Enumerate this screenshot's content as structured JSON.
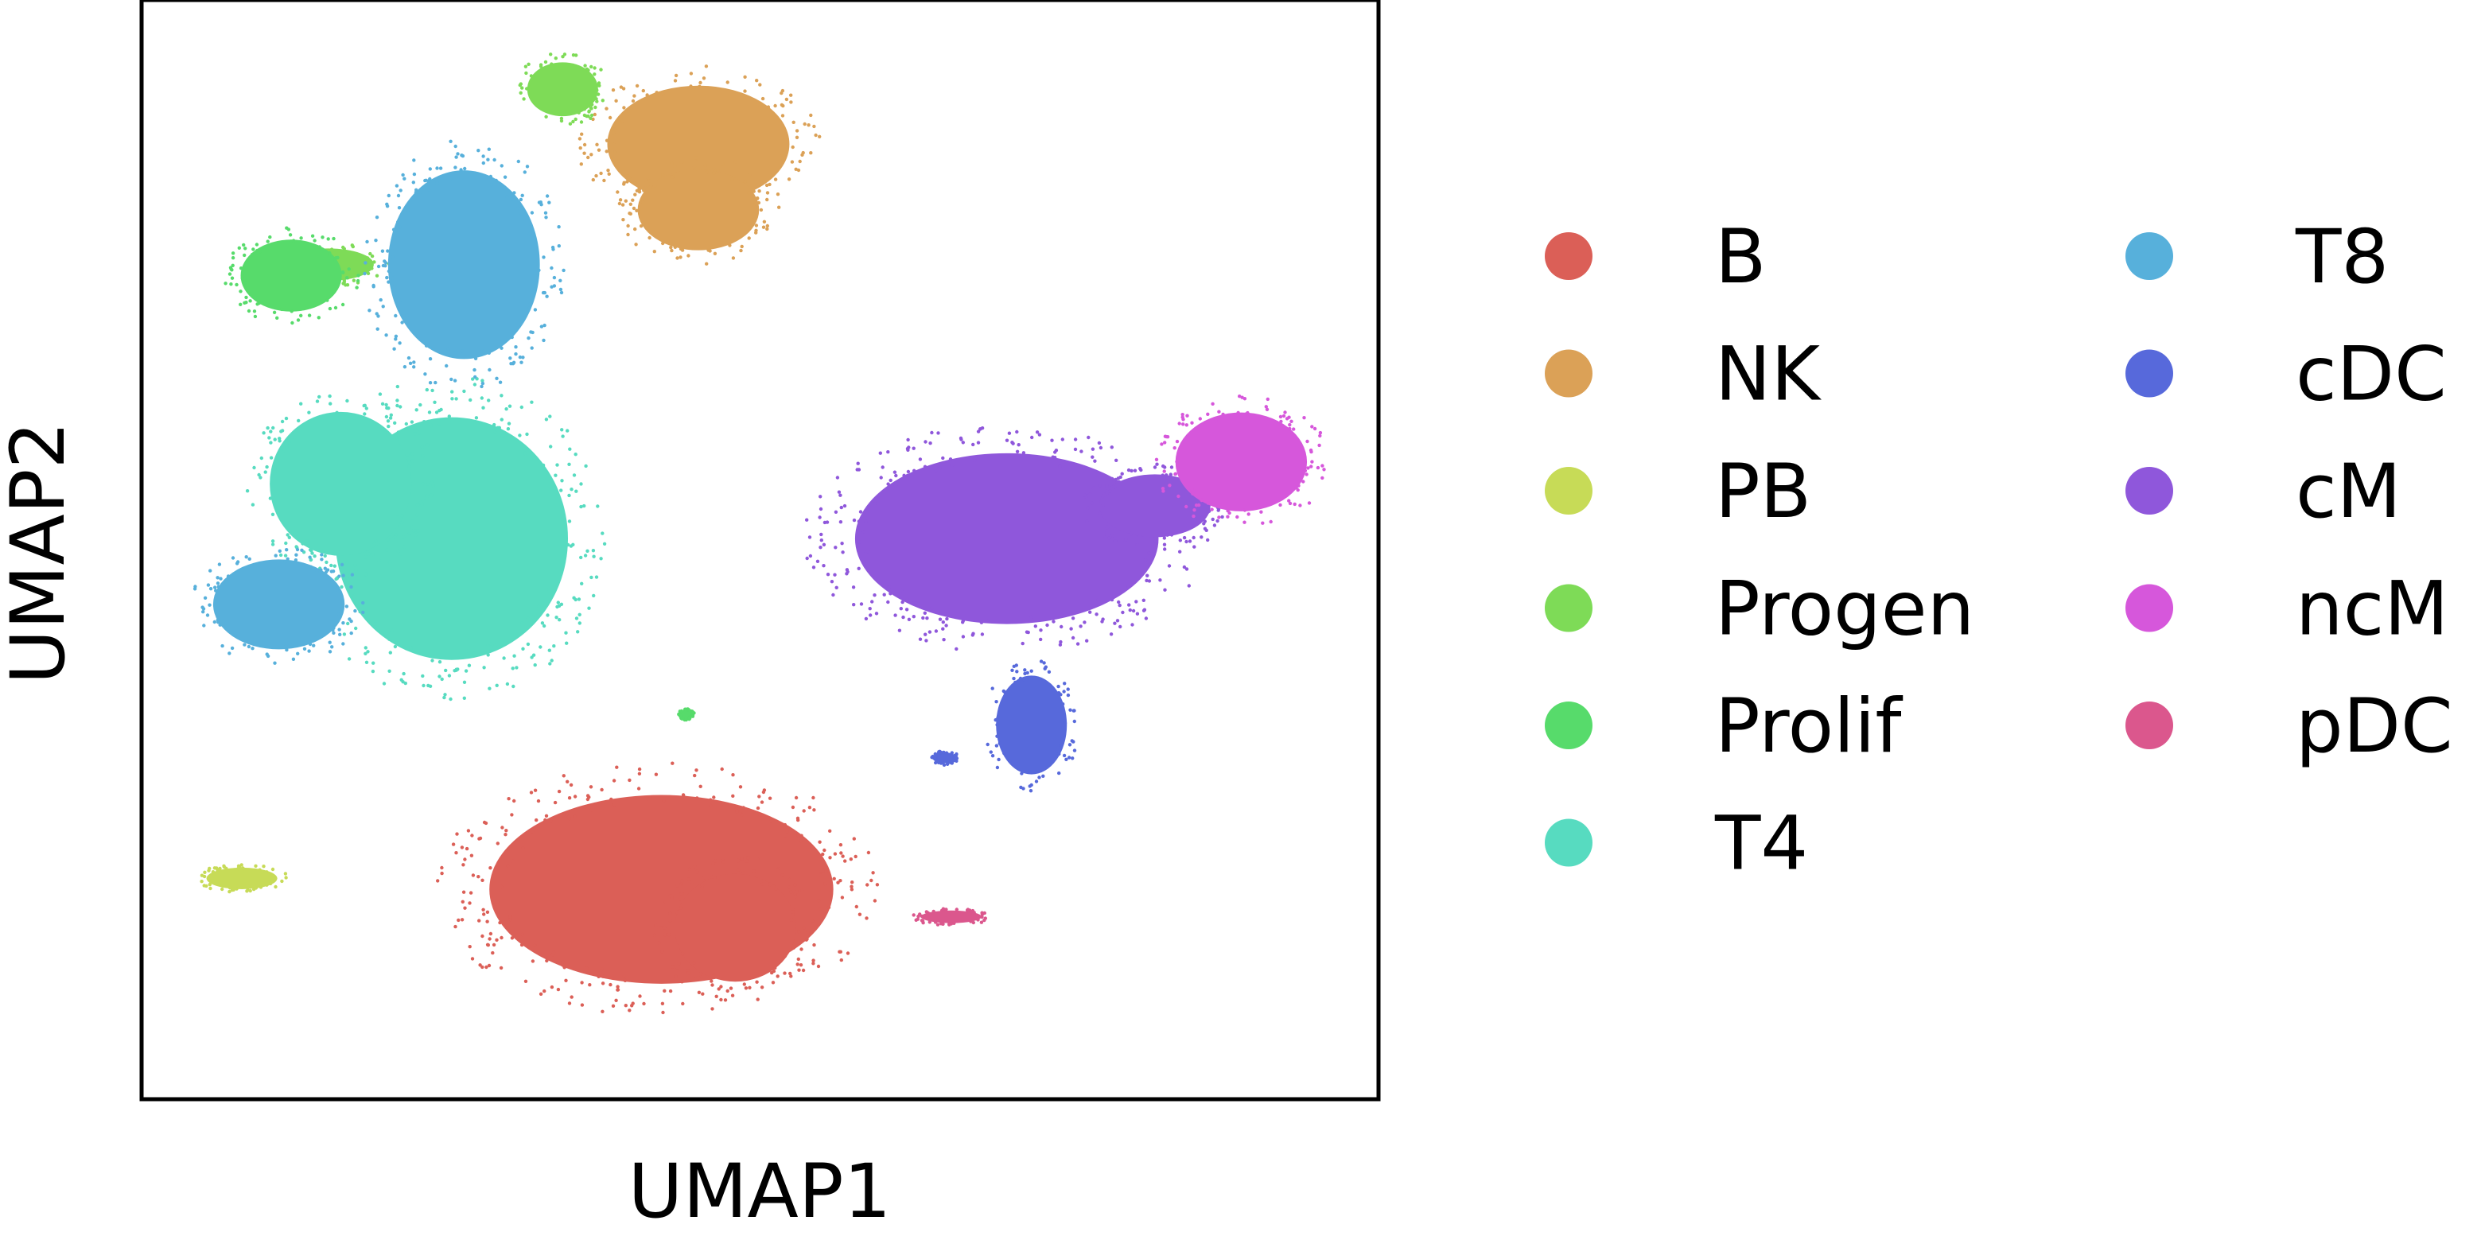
{
  "chart_data": {
    "type": "scatter",
    "title": "",
    "xlabel": "UMAP1",
    "ylabel": "UMAP2",
    "xticks": false,
    "yticks": false,
    "grid": false,
    "xlim": [
      0,
      10
    ],
    "ylim": [
      0,
      10
    ],
    "legend_placement": "right",
    "legend_columns": 2,
    "series": [
      {
        "name": "B",
        "color": "#db5f57",
        "clusters": [
          {
            "cx": 4.2,
            "cy": 1.9,
            "rx": 1.7,
            "ry": 1.05
          },
          {
            "cx": 4.8,
            "cy": 1.55,
            "rx": 0.6,
            "ry": 0.6
          }
        ]
      },
      {
        "name": "NK",
        "color": "#dba157",
        "clusters": [
          {
            "cx": 4.5,
            "cy": 8.7,
            "rx": 0.9,
            "ry": 0.65
          },
          {
            "cx": 4.5,
            "cy": 8.1,
            "rx": 0.6,
            "ry": 0.45
          }
        ]
      },
      {
        "name": "PB",
        "color": "#c7db57",
        "clusters": [
          {
            "cx": 0.8,
            "cy": 2.0,
            "rx": 0.35,
            "ry": 0.12
          }
        ]
      },
      {
        "name": "Progen",
        "color": "#7edb57",
        "clusters": [
          {
            "cx": 3.4,
            "cy": 9.2,
            "rx": 0.35,
            "ry": 0.3
          },
          {
            "cx": 1.5,
            "cy": 7.6,
            "rx": 0.45,
            "ry": 0.18
          }
        ]
      },
      {
        "name": "Prolif",
        "color": "#57db6b",
        "clusters": [
          {
            "cx": 1.2,
            "cy": 7.5,
            "rx": 0.5,
            "ry": 0.4
          },
          {
            "cx": 4.4,
            "cy": 3.5,
            "rx": 0.06,
            "ry": 0.05
          }
        ]
      },
      {
        "name": "T4",
        "color": "#57dbc0",
        "clusters": [
          {
            "cx": 2.5,
            "cy": 5.1,
            "rx": 1.15,
            "ry": 1.35
          },
          {
            "cx": 1.6,
            "cy": 5.6,
            "rx": 0.7,
            "ry": 0.8
          }
        ]
      },
      {
        "name": "T8",
        "color": "#57b0db",
        "clusters": [
          {
            "cx": 2.6,
            "cy": 7.6,
            "rx": 0.75,
            "ry": 1.05
          },
          {
            "cx": 1.1,
            "cy": 4.5,
            "rx": 0.65,
            "ry": 0.5
          }
        ]
      },
      {
        "name": "cDC",
        "color": "#5769db",
        "clusters": [
          {
            "cx": 7.2,
            "cy": 3.4,
            "rx": 0.35,
            "ry": 0.55
          },
          {
            "cx": 6.5,
            "cy": 3.1,
            "rx": 0.1,
            "ry": 0.06
          }
        ]
      },
      {
        "name": "cM",
        "color": "#8f57db",
        "clusters": [
          {
            "cx": 7.0,
            "cy": 5.1,
            "rx": 1.5,
            "ry": 0.95
          },
          {
            "cx": 8.2,
            "cy": 5.4,
            "rx": 0.55,
            "ry": 0.35
          }
        ]
      },
      {
        "name": "ncM",
        "color": "#d657db",
        "clusters": [
          {
            "cx": 8.9,
            "cy": 5.8,
            "rx": 0.65,
            "ry": 0.55
          }
        ]
      },
      {
        "name": "pDC",
        "color": "#db578d",
        "clusters": [
          {
            "cx": 6.55,
            "cy": 1.65,
            "rx": 0.3,
            "ry": 0.07
          }
        ]
      }
    ]
  }
}
